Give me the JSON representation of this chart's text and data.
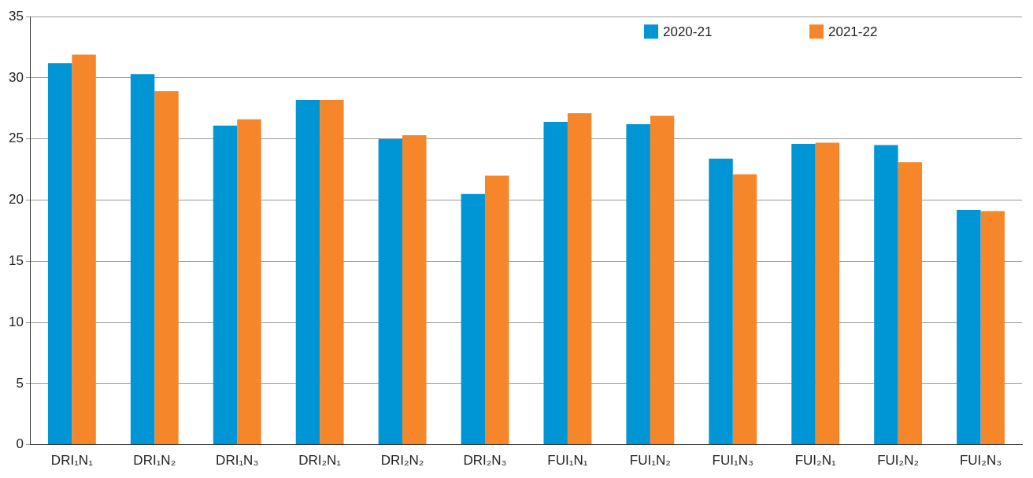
{
  "chart_data": {
    "type": "bar",
    "categories": [
      "DRI₁N₁",
      "DRI₁N₂",
      "DRI₁N₃",
      "DRI₂N₁",
      "DRI₂N₂",
      "DRI₂N₃",
      "FUI₁N₁",
      "FUI₁N₂",
      "FUI₁N₃",
      "FUI₂N₁",
      "FUI₂N₂",
      "FUI₂N₃"
    ],
    "series": [
      {
        "name": "2020-21",
        "color": "#0096d6",
        "values": [
          31.2,
          30.3,
          26.1,
          28.2,
          25.0,
          20.5,
          26.4,
          26.2,
          23.4,
          24.6,
          24.5,
          19.2
        ]
      },
      {
        "name": "2021-22",
        "color": "#f5862a",
        "values": [
          31.9,
          28.9,
          26.6,
          28.2,
          25.3,
          22.0,
          27.1,
          26.9,
          22.1,
          24.7,
          23.1,
          19.1
        ]
      }
    ],
    "ylim": [
      0,
      35
    ],
    "yticks": [
      0,
      5,
      10,
      15,
      20,
      25,
      30,
      35
    ],
    "grid": "y",
    "legend": "top right"
  }
}
